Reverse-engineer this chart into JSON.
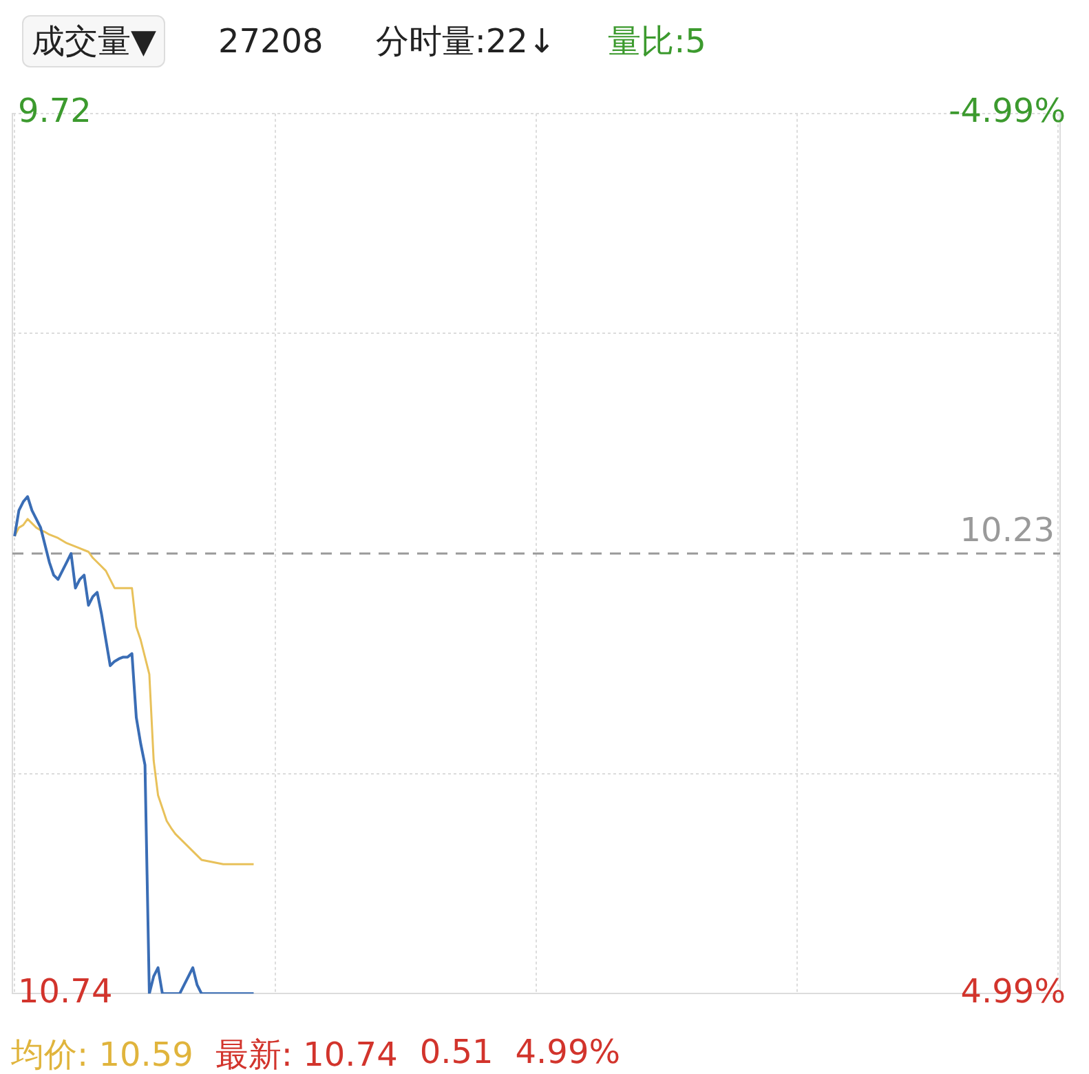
{
  "chart_data": {
    "type": "line",
    "categories": [
      null,
      null,
      null,
      null,
      null,
      null,
      null,
      null,
      null,
      null,
      null,
      null,
      null,
      null,
      null,
      null,
      null,
      null,
      null,
      null,
      null,
      null,
      null,
      null,
      null,
      null,
      null,
      null,
      null,
      null,
      null,
      null,
      null,
      null,
      null,
      null,
      null,
      null,
      null,
      null,
      null,
      null,
      null,
      null,
      null,
      null,
      null,
      null,
      null,
      null,
      null,
      null,
      null,
      null,
      null,
      null,
      null,
      null,
      null,
      null,
      null,
      null,
      null,
      null,
      null,
      null,
      null,
      null,
      null,
      null,
      null,
      null,
      null,
      null,
      null,
      null,
      null,
      null,
      null,
      null,
      null,
      null,
      null,
      null,
      null,
      null,
      null,
      null,
      null,
      null,
      null,
      null,
      null,
      null,
      null,
      null,
      null,
      null,
      null,
      null,
      null,
      null,
      null,
      null,
      null,
      null,
      null,
      null,
      null,
      null,
      null,
      null,
      null,
      null,
      null,
      null,
      null,
      null,
      null,
      null,
      null,
      null,
      null,
      null,
      null,
      null,
      null,
      null,
      null,
      null,
      null,
      null,
      null,
      null,
      null,
      null,
      null,
      null,
      null,
      null,
      null,
      null,
      null,
      null,
      null,
      null,
      null,
      null,
      null,
      null,
      null,
      null,
      null,
      null,
      null,
      null,
      null,
      null,
      null,
      null,
      null,
      null,
      null,
      null,
      null,
      null,
      null,
      null,
      null,
      null,
      null,
      null,
      null,
      null,
      null,
      null,
      null,
      null,
      null,
      null,
      null,
      null,
      null,
      null,
      null,
      null,
      null,
      null,
      null,
      null,
      null,
      null,
      null,
      null,
      null,
      null,
      null,
      null,
      null,
      null,
      null,
      null,
      null,
      null,
      null,
      null,
      null,
      null,
      null,
      null,
      null,
      null,
      null,
      null,
      null,
      null,
      null,
      null,
      null,
      null,
      null,
      null,
      null,
      null,
      null,
      null,
      null,
      null,
      null,
      null,
      null,
      null,
      null,
      null,
      null,
      null,
      null,
      null,
      null,
      null,
      null
    ],
    "ylim": [
      10.74,
      9.72
    ],
    "yticks": [
      9.72,
      {
        "value": 9.975,
        "label": null
      },
      {
        "value": 10.485,
        "label": null
      },
      10.74
    ],
    "y2lim": [
      4.99,
      -4.99
    ],
    "y2ticks": [
      {
        "value": -4.99,
        "label": "-4.99%"
      },
      {
        "value": 4.99,
        "label": "4.99%"
      }
    ],
    "tick_labels": "y",
    "grid": true,
    "legend": false,
    "ref_lines": [
      {
        "axis": "y",
        "value": 10.23,
        "label": "10.23",
        "color": "#9a9a9a",
        "line_style": "dashed"
      }
    ],
    "annotations": [
      "成交量▼",
      "27208",
      "分时量:22↓",
      "量比:5",
      "均价: 10.59",
      "最新: 10.74",
      "0.51",
      "4.99%"
    ],
    "series": [
      {
        "color": "#3a6db5",
        "values": [
          10.21,
          10.18,
          10.17,
          10.164,
          10.18,
          10.19,
          10.2,
          10.22,
          10.24,
          10.255,
          10.26,
          10.25,
          10.24,
          10.23,
          10.27,
          10.26,
          10.255,
          10.29,
          10.28,
          10.275,
          10.3,
          10.33,
          10.36,
          10.355,
          10.352,
          10.35,
          10.35,
          10.346,
          10.42,
          10.45,
          10.475,
          10.74,
          10.72,
          10.71,
          10.74,
          10.74,
          10.74,
          10.74,
          10.74,
          10.73,
          10.72,
          10.71,
          10.73,
          10.74,
          10.74,
          10.74,
          10.74,
          10.74,
          10.74,
          10.74,
          10.74,
          10.74,
          10.74,
          10.74,
          10.74,
          10.74,
          null,
          null,
          null,
          null,
          null,
          null,
          null,
          null,
          null,
          null,
          null,
          null,
          null,
          null,
          null,
          null,
          null,
          null,
          null,
          null,
          null,
          null,
          null,
          null,
          null,
          null,
          null,
          null,
          null,
          null,
          null,
          null,
          null,
          null,
          null,
          null,
          null,
          null,
          null,
          null,
          null,
          null,
          null,
          null,
          null,
          null,
          null,
          null,
          null,
          null,
          null,
          null,
          null,
          null,
          null,
          null,
          null,
          null,
          null,
          null,
          null,
          null,
          null,
          null,
          null,
          null,
          null,
          null,
          null,
          null,
          null,
          null,
          null,
          null,
          null,
          null,
          null,
          null,
          null,
          null,
          null,
          null,
          null,
          null,
          null,
          null,
          null,
          null,
          null,
          null,
          null,
          null,
          null,
          null,
          null,
          null,
          null,
          null,
          null,
          null,
          null,
          null,
          null,
          null,
          null,
          null,
          null,
          null,
          null,
          null,
          null,
          null,
          null,
          null,
          null,
          null,
          null,
          null,
          null,
          null,
          null,
          null,
          null,
          null,
          null,
          null,
          null,
          null,
          null,
          null,
          null,
          null,
          null,
          null,
          null,
          null,
          null,
          null,
          null,
          null,
          null,
          null,
          null,
          null,
          null,
          null,
          null,
          null,
          null,
          null,
          null,
          null,
          null,
          null,
          null,
          null,
          null,
          null,
          null,
          null,
          null,
          null,
          null,
          null,
          null,
          null,
          null,
          null,
          null,
          null,
          null,
          null,
          null,
          null,
          null,
          null,
          null,
          null,
          null,
          null,
          null,
          null,
          null,
          null,
          null
        ]
      },
      {
        "color": "#e8c15a",
        "values": [
          10.21,
          10.2,
          10.197,
          10.19,
          10.195,
          10.2,
          10.203,
          10.205,
          10.208,
          10.21,
          10.212,
          10.215,
          10.218,
          10.22,
          10.222,
          10.224,
          10.226,
          10.228,
          10.235,
          10.24,
          10.245,
          10.25,
          10.26,
          10.27,
          10.27,
          10.27,
          10.27,
          10.27,
          10.315,
          10.33,
          10.35,
          10.37,
          10.47,
          10.51,
          10.525,
          10.54,
          10.548,
          10.555,
          10.56,
          10.565,
          10.57,
          10.575,
          10.58,
          10.585,
          10.586,
          10.587,
          10.588,
          10.589,
          10.59,
          10.59,
          10.59,
          10.59,
          10.59,
          10.59,
          10.59,
          10.59,
          null,
          null,
          null,
          null,
          null,
          null,
          null,
          null,
          null,
          null,
          null,
          null,
          null,
          null,
          null,
          null,
          null,
          null,
          null,
          null,
          null,
          null,
          null,
          null,
          null,
          null,
          null,
          null,
          null,
          null,
          null,
          null,
          null,
          null,
          null,
          null,
          null,
          null,
          null,
          null,
          null,
          null,
          null,
          null,
          null,
          null,
          null,
          null,
          null,
          null,
          null,
          null,
          null,
          null,
          null,
          null,
          null,
          null,
          null,
          null,
          null,
          null,
          null,
          null,
          null,
          null,
          null,
          null,
          null,
          null,
          null,
          null,
          null,
          null,
          null,
          null,
          null,
          null,
          null,
          null,
          null,
          null,
          null,
          null,
          null,
          null,
          null,
          null,
          null,
          null,
          null,
          null,
          null,
          null,
          null,
          null,
          null,
          null,
          null,
          null,
          null,
          null,
          null,
          null,
          null,
          null,
          null,
          null,
          null,
          null,
          null,
          null,
          null,
          null,
          null,
          null,
          null,
          null,
          null,
          null,
          null,
          null,
          null,
          null,
          null,
          null,
          null,
          null,
          null,
          null,
          null,
          null,
          null,
          null,
          null,
          null,
          null,
          null,
          null,
          null,
          null,
          null,
          null,
          null,
          null,
          null,
          null,
          null,
          null,
          null,
          null,
          null,
          null,
          null,
          null,
          null,
          null,
          null,
          null,
          null,
          null,
          null,
          null,
          null,
          null,
          null,
          null,
          null,
          null,
          null,
          null,
          null,
          null,
          null,
          null,
          null,
          null,
          null,
          null,
          null,
          null,
          null,
          null,
          null,
          null
        ]
      }
    ]
  }
}
